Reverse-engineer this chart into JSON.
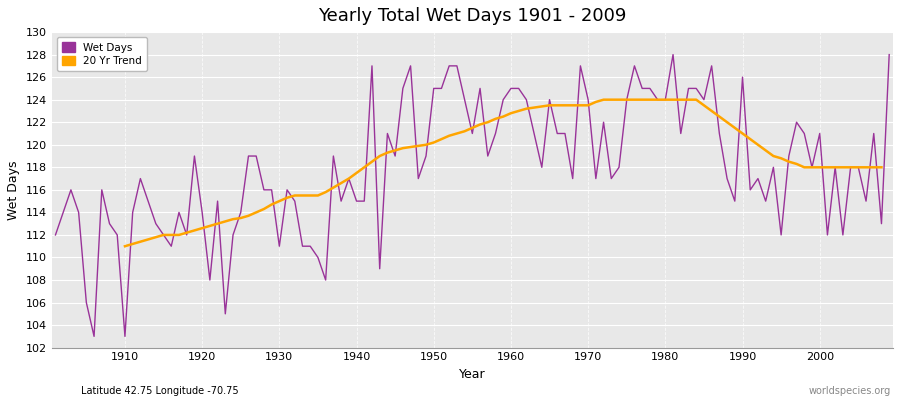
{
  "title": "Yearly Total Wet Days 1901 - 2009",
  "xlabel": "Year",
  "ylabel": "Wet Days",
  "subtitle": "Latitude 42.75 Longitude -70.75",
  "watermark": "worldspecies.org",
  "legend_wet": "Wet Days",
  "legend_trend": "20 Yr Trend",
  "ylim": [
    102,
    130
  ],
  "wet_color": "#993399",
  "trend_color": "#FFA500",
  "bg_color": "#FFFFFF",
  "plot_bg": "#E8E8E8",
  "years": [
    1901,
    1902,
    1903,
    1904,
    1905,
    1906,
    1907,
    1908,
    1909,
    1910,
    1911,
    1912,
    1913,
    1914,
    1915,
    1916,
    1917,
    1918,
    1919,
    1920,
    1921,
    1922,
    1923,
    1924,
    1925,
    1926,
    1927,
    1928,
    1929,
    1930,
    1931,
    1932,
    1933,
    1934,
    1935,
    1936,
    1937,
    1938,
    1939,
    1940,
    1941,
    1942,
    1943,
    1944,
    1945,
    1946,
    1947,
    1948,
    1949,
    1950,
    1951,
    1952,
    1953,
    1954,
    1955,
    1956,
    1957,
    1958,
    1959,
    1960,
    1961,
    1962,
    1963,
    1964,
    1965,
    1966,
    1967,
    1968,
    1969,
    1970,
    1971,
    1972,
    1973,
    1974,
    1975,
    1976,
    1977,
    1978,
    1979,
    1980,
    1981,
    1982,
    1983,
    1984,
    1985,
    1986,
    1987,
    1988,
    1989,
    1990,
    1991,
    1992,
    1993,
    1994,
    1995,
    1996,
    1997,
    1998,
    1999,
    2000,
    2001,
    2002,
    2003,
    2004,
    2005,
    2006,
    2007,
    2008,
    2009
  ],
  "wet_days": [
    112,
    114,
    116,
    114,
    106,
    103,
    116,
    113,
    112,
    103,
    114,
    117,
    115,
    113,
    112,
    111,
    114,
    112,
    119,
    114,
    108,
    115,
    105,
    112,
    114,
    119,
    119,
    116,
    116,
    111,
    116,
    115,
    111,
    111,
    110,
    108,
    119,
    115,
    117,
    115,
    115,
    127,
    109,
    121,
    119,
    125,
    127,
    117,
    119,
    125,
    125,
    127,
    127,
    124,
    121,
    125,
    119,
    121,
    124,
    125,
    125,
    124,
    121,
    118,
    124,
    121,
    121,
    117,
    127,
    124,
    117,
    122,
    117,
    118,
    124,
    127,
    125,
    125,
    124,
    124,
    128,
    121,
    125,
    125,
    124,
    127,
    121,
    117,
    115,
    126,
    116,
    117,
    115,
    118,
    112,
    119,
    122,
    121,
    118,
    121,
    112,
    118,
    112,
    118,
    118,
    115,
    121,
    113,
    128
  ],
  "trend_years": [
    1910,
    1911,
    1912,
    1913,
    1914,
    1915,
    1916,
    1917,
    1918,
    1919,
    1920,
    1921,
    1922,
    1923,
    1924,
    1925,
    1926,
    1927,
    1928,
    1929,
    1930,
    1931,
    1932,
    1933,
    1934,
    1935,
    1936,
    1937,
    1938,
    1939,
    1940,
    1941,
    1942,
    1943,
    1944,
    1945,
    1946,
    1947,
    1948,
    1949,
    1950,
    1951,
    1952,
    1953,
    1954,
    1955,
    1956,
    1957,
    1958,
    1959,
    1960,
    1961,
    1962,
    1963,
    1964,
    1965,
    1966,
    1967,
    1968,
    1969,
    1970,
    1971,
    1972,
    1973,
    1974,
    1975,
    1976,
    1977,
    1978,
    1979,
    1980,
    1981,
    1982,
    1983,
    1984,
    1985,
    1986,
    1987,
    1988,
    1989,
    1990,
    1991,
    1992,
    1993,
    1994,
    1995,
    1996,
    1997,
    1998,
    1999,
    2000,
    2001,
    2002,
    2003,
    2004,
    2005,
    2006,
    2007,
    2008
  ],
  "trend_values": [
    111.0,
    111.2,
    111.4,
    111.6,
    111.8,
    112.0,
    112.0,
    112.0,
    112.2,
    112.4,
    112.6,
    112.8,
    113.0,
    113.2,
    113.4,
    113.5,
    113.7,
    114.0,
    114.3,
    114.7,
    115.0,
    115.3,
    115.5,
    115.5,
    115.5,
    115.5,
    115.8,
    116.2,
    116.6,
    117.0,
    117.5,
    118.0,
    118.5,
    119.0,
    119.3,
    119.5,
    119.7,
    119.8,
    119.9,
    120.0,
    120.2,
    120.5,
    120.8,
    121.0,
    121.2,
    121.5,
    121.8,
    122.0,
    122.3,
    122.5,
    122.8,
    123.0,
    123.2,
    123.3,
    123.4,
    123.5,
    123.5,
    123.5,
    123.5,
    123.5,
    123.5,
    123.8,
    124.0,
    124.0,
    124.0,
    124.0,
    124.0,
    124.0,
    124.0,
    124.0,
    124.0,
    124.0,
    124.0,
    124.0,
    124.0,
    123.5,
    123.0,
    122.5,
    122.0,
    121.5,
    121.0,
    120.5,
    120.0,
    119.5,
    119.0,
    118.8,
    118.5,
    118.3,
    118.0,
    118.0,
    118.0,
    118.0,
    118.0,
    118.0,
    118.0,
    118.0,
    118.0,
    118.0,
    118.0
  ]
}
